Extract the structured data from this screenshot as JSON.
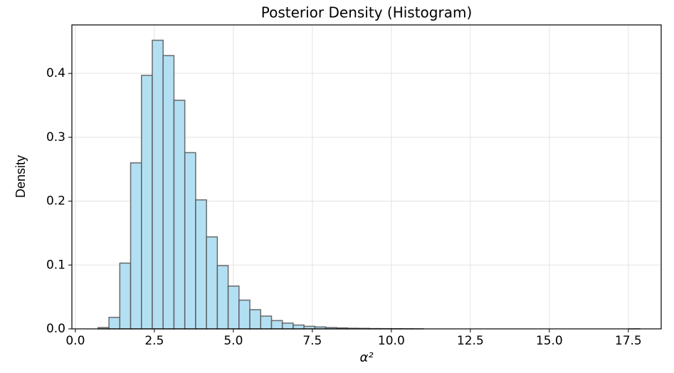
{
  "chart_data": {
    "type": "histogram",
    "title": "Posterior Density (Histogram)",
    "xlabel": "α²",
    "ylabel": "Density",
    "bins": [
      0.72,
      1.063,
      1.406,
      1.749,
      2.092,
      2.435,
      2.778,
      3.121,
      3.464,
      3.807,
      4.15,
      4.493,
      4.836,
      5.179,
      5.522,
      5.865,
      6.208,
      6.551,
      6.894,
      7.237,
      7.58,
      7.923,
      8.266,
      8.609,
      8.952,
      9.295,
      9.638,
      9.981,
      10.324,
      10.667,
      11.01,
      11.353,
      11.696,
      12.039,
      12.382,
      12.725,
      13.068,
      13.411,
      13.754,
      14.097,
      14.44,
      14.783,
      15.126,
      15.469,
      15.812,
      16.155,
      16.498,
      16.841,
      17.184,
      17.527,
      17.87
    ],
    "values": [
      0.002,
      0.018,
      0.103,
      0.26,
      0.397,
      0.452,
      0.428,
      0.358,
      0.276,
      0.202,
      0.144,
      0.099,
      0.067,
      0.045,
      0.03,
      0.02,
      0.013,
      0.009,
      0.006,
      0.004,
      0.003,
      0.002,
      0.0015,
      0.001,
      0.0008,
      0.0005,
      0.0004,
      0.0003,
      0.0002,
      0.0001,
      0,
      0,
      0,
      0,
      0,
      0,
      0,
      0,
      0,
      0,
      0,
      0,
      0,
      0,
      0,
      0,
      0,
      0,
      0,
      0.0001
    ],
    "color": "#b3dff2",
    "edgecolor": "#555555",
    "xlim": [
      -0.11,
      18.54
    ],
    "ylim": [
      0,
      0.476
    ],
    "xticks": [
      {
        "value": 0,
        "label": "0.0"
      },
      2.5,
      {
        "value": 5,
        "label": "5.0"
      },
      7.5,
      {
        "value": 10,
        "label": "10.0"
      },
      12.5,
      {
        "value": 15,
        "label": "15.0"
      },
      17.5
    ],
    "yticks": [
      {
        "value": 0,
        "label": "0.0"
      },
      0.1,
      0.2,
      0.3,
      0.4
    ],
    "grid": true
  }
}
